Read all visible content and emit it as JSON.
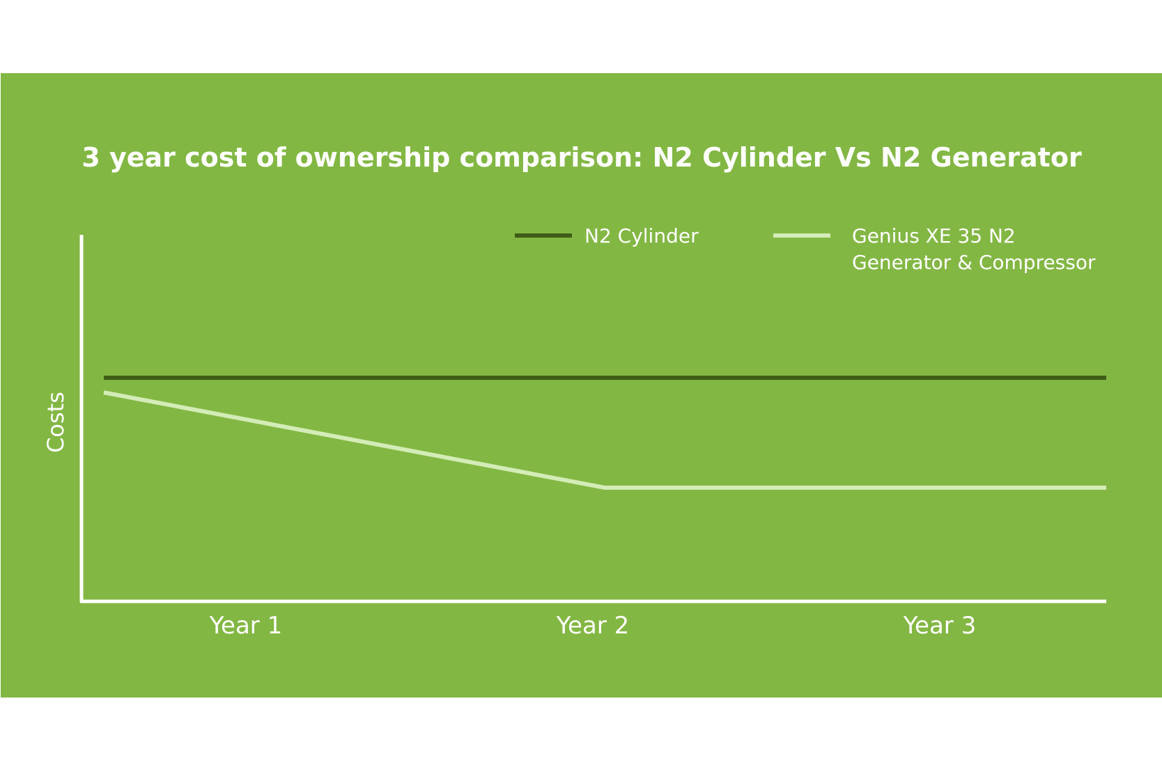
{
  "chart_data": {
    "type": "line",
    "title": "3 year cost of ownership comparison: N2 Cylinder Vs N2 Generator",
    "xlabel": "",
    "ylabel": "Costs",
    "categories": [
      "Year 1",
      "Year 2",
      "Year 3"
    ],
    "x": [
      0,
      1.5,
      3
    ],
    "ylim": [
      0,
      100
    ],
    "grid": false,
    "legend_position": "top-right",
    "series": [
      {
        "name": "N2 Cylinder",
        "values": [
          61,
          61,
          61
        ],
        "color": "#3f5c17"
      },
      {
        "name_lines": [
          "Genius XE 35 N2",
          "Generator & Compressor"
        ],
        "values": [
          57,
          31,
          31
        ],
        "color": "#d4ecb7"
      }
    ]
  },
  "colors": {
    "panel_background": "#83b744",
    "axis": "#ffffff",
    "text": "#ffffff"
  }
}
